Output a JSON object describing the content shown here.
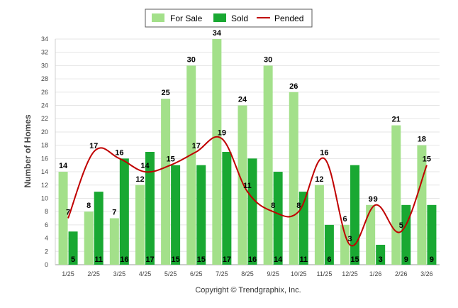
{
  "chart_data": {
    "type": "bar",
    "title": "",
    "xlabel": "",
    "ylabel": "Number of Homes",
    "ylim": [
      0,
      34
    ],
    "ytick_step": 2,
    "grid": true,
    "legend_position": "top-center",
    "categories": [
      "1/25",
      "2/25",
      "3/25",
      "4/25",
      "5/25",
      "6/25",
      "7/25",
      "8/25",
      "9/25",
      "10/25",
      "11/25",
      "12/25",
      "1/26",
      "2/26",
      "3/26"
    ],
    "series": [
      {
        "name": "For Sale",
        "type": "bar",
        "color": "#a3e08a",
        "values": [
          14,
          8,
          7,
          12,
          25,
          30,
          34,
          24,
          30,
          26,
          12,
          6,
          9,
          21,
          18
        ]
      },
      {
        "name": "Sold",
        "type": "bar",
        "color": "#19a832",
        "values": [
          5,
          11,
          16,
          17,
          15,
          15,
          17,
          16,
          14,
          11,
          6,
          15,
          3,
          9,
          9
        ]
      },
      {
        "name": "Pended",
        "type": "line",
        "color": "#c00000",
        "values": [
          7,
          17,
          16,
          14,
          15,
          17,
          19,
          11,
          8,
          8,
          16,
          3,
          9,
          5,
          15
        ]
      }
    ],
    "footer": "Copyright © Trendgraphix, Inc."
  }
}
